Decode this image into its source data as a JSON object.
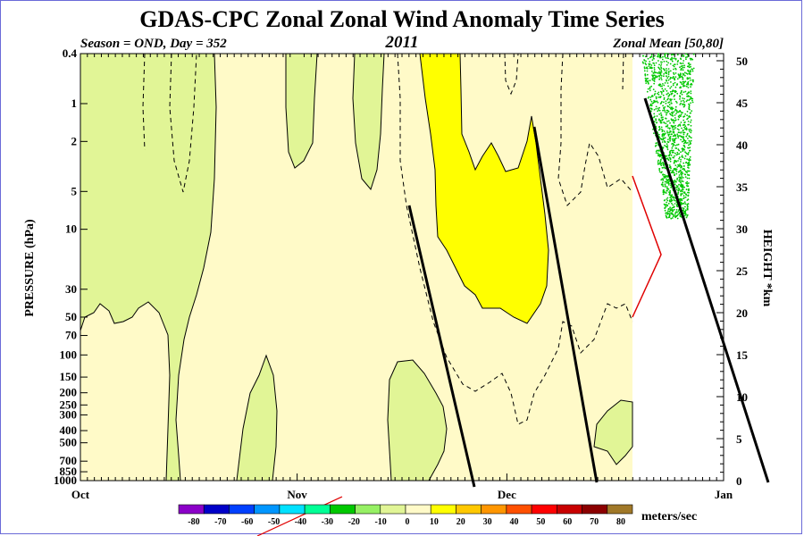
{
  "chart_data": {
    "type": "heatmap",
    "title": "GDAS-CPC Zonal Zonal Wind Anomaly Time Series",
    "subtitle_left": "Season = OND, Day = 352",
    "subtitle_center": "2011",
    "subtitle_right": "Zonal Mean [50,80]",
    "ylabel_left": "PRESSURE (hPa)",
    "ylabel_right": "HEIGHT *km",
    "xlabel_units": "meters/sec",
    "x_ticks": [
      "Oct",
      "Nov",
      "Dec",
      "Jan"
    ],
    "x_range_days": [
      0,
      92
    ],
    "data_end_day": 82,
    "pressure_ticks": [
      "0.4",
      "1",
      "2",
      "5",
      "10",
      "30",
      "50",
      "70",
      "100",
      "150",
      "200",
      "250",
      "300",
      "400",
      "500",
      "700",
      "850",
      "1000"
    ],
    "pressure_range_hPa": [
      0.4,
      1000
    ],
    "height_ticks": [
      "0",
      "5",
      "10",
      "15",
      "20",
      "25",
      "30",
      "35",
      "40",
      "45",
      "50"
    ],
    "height_range_km": [
      0,
      50
    ],
    "contour_levels": [
      "-80",
      "-70",
      "-60",
      "-50",
      "-40",
      "-30",
      "-20",
      "-10",
      "0",
      "10",
      "20",
      "30",
      "40",
      "50",
      "60",
      "70",
      "80"
    ],
    "contour_colors": [
      "#8b00c8",
      "#0000c8",
      "#0040ff",
      "#0096ff",
      "#00e1ff",
      "#00ff96",
      "#00c800",
      "#96f064",
      "#e1f596",
      "#fffac8",
      "#ffff00",
      "#ffc800",
      "#ff9600",
      "#ff5000",
      "#ff0000",
      "#c80000",
      "#8b0000",
      "#a07828"
    ],
    "regions": [
      {
        "name": "-10 to 0 (Oct)",
        "level": "-10",
        "color": "#e1f596"
      },
      {
        "name": "0 to 10 (background)",
        "level": "0",
        "color": "#fffac8"
      },
      {
        "name": "10 to 20 (Dec stratosphere)",
        "level": "10",
        "color": "#ffff00"
      }
    ]
  }
}
